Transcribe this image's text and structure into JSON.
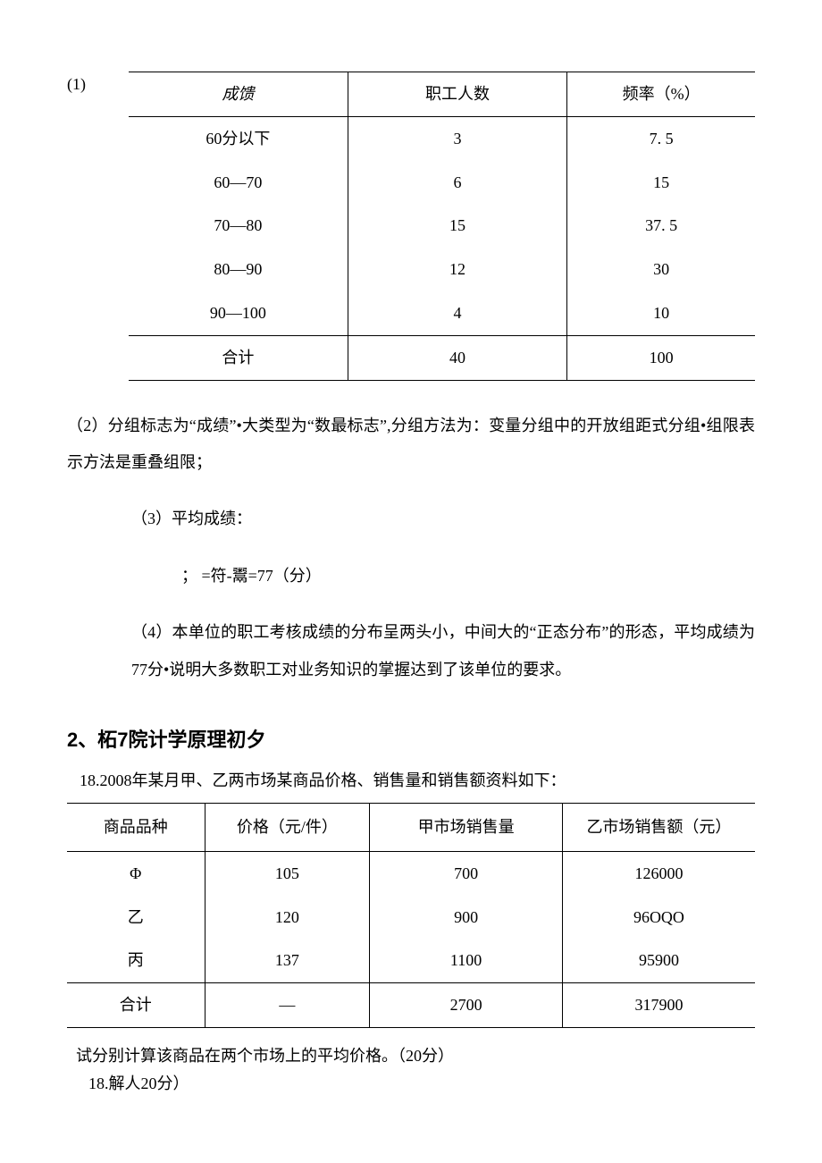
{
  "doc": {
    "text_color": "#000000",
    "bg_color": "#ffffff",
    "border_color": "#000000",
    "base_fontsize": 18
  },
  "part1": {
    "marker": "(1)",
    "table": {
      "columns": [
        "成馈",
        "职工人数",
        "频率（%）"
      ],
      "col_widths_pct": [
        35,
        35,
        30
      ],
      "rows": [
        [
          "60分以下",
          "3",
          "7. 5"
        ],
        [
          "60—70",
          "6",
          "15"
        ],
        [
          "70—80",
          "15",
          "37. 5"
        ],
        [
          "80—90",
          "12",
          "30"
        ],
        [
          "90—100",
          "4",
          "10"
        ]
      ],
      "total_row": [
        "合计",
        "40",
        "100"
      ]
    },
    "p2": "（2）分组标志为“成绩”•大类型为“数最标志”,分组方法为：变量分组中的开放组距式分组•组限表示方法是重叠组限；",
    "p3_label": "（3）平均成绩：",
    "p3_formula": "； =符-鬻=77（分）",
    "p4": "（4）本单位的职工考核成绩的分布呈两头小，中间大的“正态分布”的形态，平均成绩为77分•说明大多数职工对业务知识的掌握达到了该单位的要求。"
  },
  "part2": {
    "title_prefix": "2",
    "title_rest": "、柘",
    "title_num": "7",
    "title_tail": "院计学原理初夕",
    "title_fontsize": 22,
    "q18_intro": "18.2008年某月甲、乙两市场某商品价格、销售量和销售额资料如下：",
    "table": {
      "columns": [
        "商品品种",
        "价格（元/件）",
        "甲市场销售量",
        "乙市场销售额（元）"
      ],
      "col_widths_pct": [
        20,
        24,
        28,
        28
      ],
      "rows": [
        [
          "Φ",
          "105",
          "700",
          "126000"
        ],
        [
          "乙",
          "120",
          "900",
          "96OQO"
        ],
        [
          "丙",
          "137",
          "1100",
          "95900"
        ]
      ],
      "total_row": [
        "合计",
        "—",
        "2700",
        "317900"
      ]
    },
    "q18_footer": "试分别计算该商品在两个市场上的平均价格。（20分）",
    "q18_answer": "18.解人20分）"
  }
}
